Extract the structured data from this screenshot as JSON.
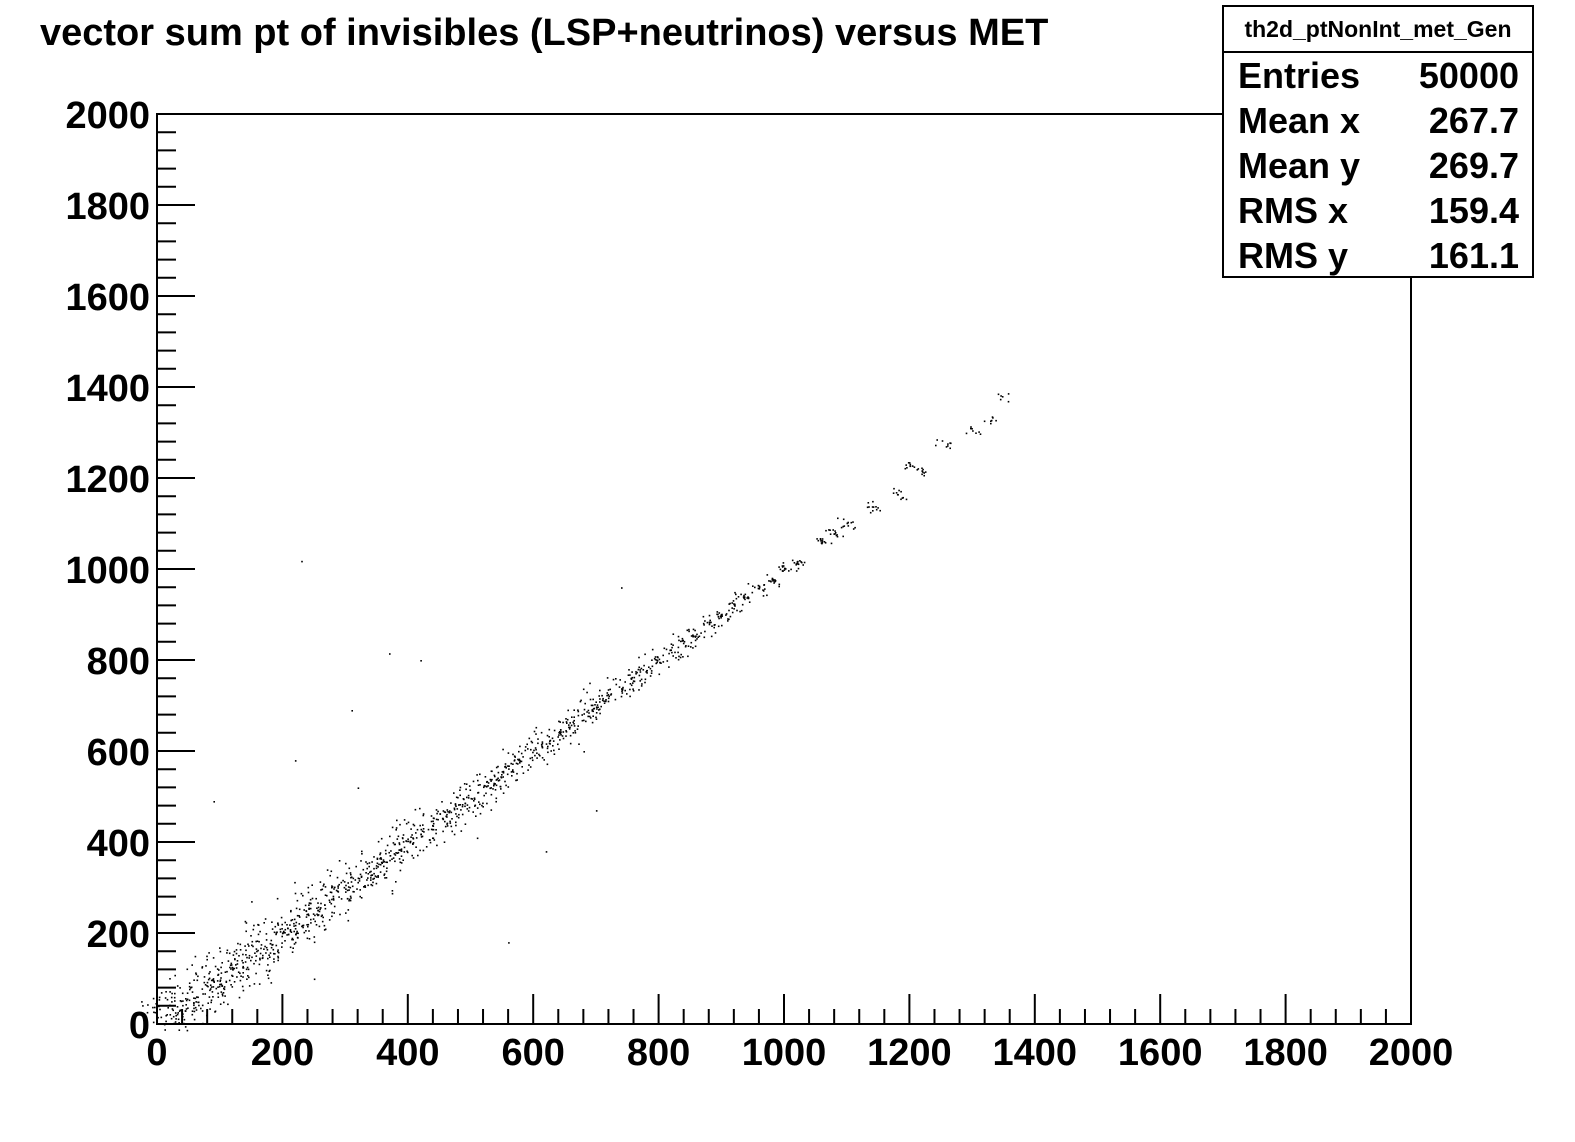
{
  "hist": {
    "title": "vector sum pt of invisibles (LSP+neutrinos) versus MET",
    "stats": {
      "name": "th2d_ptNonInt_met_Gen",
      "rows": [
        {
          "label": "Entries",
          "value": "50000"
        },
        {
          "label": "Mean x",
          "value": "267.7"
        },
        {
          "label": "Mean y",
          "value": "269.7"
        },
        {
          "label": "RMS x",
          "value": "159.4"
        },
        {
          "label": "RMS y",
          "value": "161.1"
        }
      ]
    }
  },
  "chart_data": {
    "type": "scatter",
    "title": "vector sum pt of invisibles (LSP+neutrinos) versus MET",
    "xlabel": "",
    "ylabel": "",
    "xlim": [
      0,
      2000
    ],
    "ylim": [
      0,
      2000
    ],
    "xticks": [
      "0",
      "200",
      "400",
      "600",
      "800",
      "1000",
      "1200",
      "1400",
      "1600",
      "1800",
      "2000"
    ],
    "yticks": [
      "0",
      "200",
      "400",
      "600",
      "800",
      "1000",
      "1200",
      "1400",
      "1600",
      "1800",
      "2000"
    ],
    "grid": false,
    "legend": "none",
    "point_color": "#000000",
    "series": [
      {
        "values": [
          [
            20,
            22
          ],
          [
            40,
            42
          ],
          [
            60,
            58
          ],
          [
            80,
            84
          ],
          [
            100,
            98
          ],
          [
            120,
            121
          ],
          [
            140,
            138
          ],
          [
            160,
            163
          ],
          [
            180,
            178
          ],
          [
            200,
            202
          ],
          [
            220,
            218
          ],
          [
            240,
            243
          ],
          [
            260,
            257
          ],
          [
            280,
            282
          ],
          [
            300,
            298
          ],
          [
            320,
            322
          ],
          [
            340,
            337
          ],
          [
            360,
            362
          ],
          [
            380,
            378
          ],
          [
            400,
            403
          ],
          [
            420,
            418
          ],
          [
            440,
            442
          ],
          [
            460,
            458
          ],
          [
            480,
            483
          ],
          [
            500,
            497
          ],
          [
            520,
            522
          ],
          [
            540,
            538
          ],
          [
            560,
            562
          ],
          [
            580,
            579
          ],
          [
            600,
            603
          ],
          [
            620,
            617
          ],
          [
            640,
            642
          ],
          [
            660,
            658
          ],
          [
            680,
            683
          ],
          [
            700,
            698
          ],
          [
            720,
            722
          ],
          [
            740,
            738
          ],
          [
            760,
            763
          ],
          [
            780,
            778
          ],
          [
            800,
            803
          ],
          [
            820,
            818
          ],
          [
            840,
            842
          ],
          [
            860,
            858
          ],
          [
            880,
            883
          ],
          [
            900,
            898
          ],
          [
            920,
            922
          ],
          [
            940,
            938
          ],
          [
            960,
            962
          ],
          [
            980,
            978
          ],
          [
            1000,
            1003
          ],
          [
            1020,
            1017
          ],
          [
            1060,
            1063
          ],
          [
            1080,
            1079
          ],
          [
            1100,
            1102
          ],
          [
            1140,
            1138
          ],
          [
            1180,
            1165
          ],
          [
            1200,
            1228
          ],
          [
            1220,
            1215
          ],
          [
            1260,
            1272
          ],
          [
            1300,
            1305
          ],
          [
            1330,
            1328
          ],
          [
            1345,
            1382
          ],
          [
            230,
            1018
          ],
          [
            420,
            800
          ],
          [
            370,
            815
          ],
          [
            220,
            580
          ],
          [
            310,
            690
          ],
          [
            680,
            600
          ],
          [
            740,
            960
          ],
          [
            700,
            470
          ],
          [
            510,
            410
          ],
          [
            620,
            380
          ],
          [
            560,
            180
          ],
          [
            90,
            490
          ],
          [
            250,
            100
          ],
          [
            320,
            520
          ],
          [
            150,
            270
          ],
          [
            60,
            150
          ]
        ]
      }
    ]
  }
}
